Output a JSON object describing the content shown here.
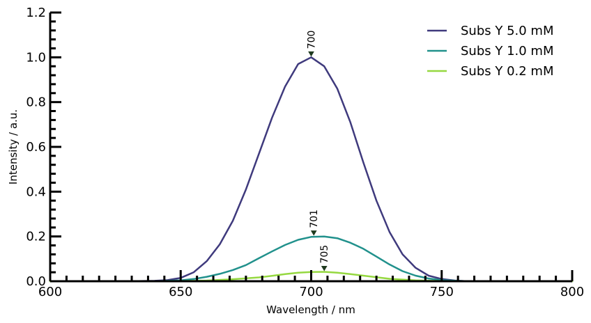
{
  "chart_data": {
    "type": "line",
    "title": "",
    "xlabel": "Wavelength / nm",
    "ylabel": "Intensity / a.u.",
    "xlim": [
      600,
      800
    ],
    "ylim": [
      0,
      1.2
    ],
    "x_ticks": [
      "600",
      "650",
      "700",
      "750",
      "800"
    ],
    "y_ticks": [
      "0.0",
      "0.2",
      "0.4",
      "0.6",
      "0.8",
      "1.0",
      "1.2"
    ],
    "legend_position": "top-right",
    "grid": false,
    "series": [
      {
        "name": "Subs Y 5.0 mM",
        "color": "#3f3a7d",
        "x": [
          600,
          610,
          620,
          630,
          640,
          645,
          650,
          655,
          660,
          665,
          670,
          675,
          680,
          685,
          690,
          695,
          700,
          705,
          710,
          715,
          720,
          725,
          730,
          735,
          740,
          745,
          750,
          755,
          760,
          770,
          780,
          790,
          800
        ],
        "y": [
          0.0,
          0.0,
          0.0,
          0.0,
          0.002,
          0.005,
          0.015,
          0.04,
          0.09,
          0.165,
          0.27,
          0.41,
          0.57,
          0.73,
          0.87,
          0.97,
          1.0,
          0.96,
          0.86,
          0.71,
          0.53,
          0.36,
          0.22,
          0.12,
          0.06,
          0.025,
          0.01,
          0.003,
          0.0,
          0.0,
          0.0,
          0.0,
          0.0
        ]
      },
      {
        "name": "Subs Y 1.0 mM",
        "color": "#21918c",
        "x": [
          600,
          620,
          640,
          650,
          655,
          660,
          665,
          670,
          675,
          680,
          685,
          690,
          695,
          700,
          705,
          710,
          715,
          720,
          725,
          730,
          735,
          740,
          745,
          750,
          760,
          780,
          800
        ],
        "y": [
          0.0,
          0.0,
          0.0,
          0.004,
          0.01,
          0.02,
          0.033,
          0.05,
          0.072,
          0.103,
          0.133,
          0.162,
          0.185,
          0.198,
          0.2,
          0.192,
          0.172,
          0.145,
          0.11,
          0.075,
          0.045,
          0.025,
          0.012,
          0.005,
          0.0,
          0.0,
          0.0
        ]
      },
      {
        "name": "Subs Y 0.2 mM",
        "color": "#95d840",
        "x": [
          600,
          620,
          640,
          650,
          660,
          670,
          680,
          685,
          690,
          695,
          700,
          705,
          710,
          715,
          720,
          725,
          730,
          740,
          750,
          760,
          780,
          800
        ],
        "y": [
          0.0,
          0.0,
          0.0,
          0.001,
          0.003,
          0.009,
          0.017,
          0.024,
          0.032,
          0.038,
          0.041,
          0.042,
          0.038,
          0.032,
          0.025,
          0.018,
          0.011,
          0.004,
          0.001,
          0.0,
          0.0,
          0.0
        ]
      }
    ],
    "annotations": [
      {
        "text": "700",
        "x": 700,
        "y": 1.0
      },
      {
        "text": "701",
        "x": 701,
        "y": 0.2
      },
      {
        "text": "705",
        "x": 705,
        "y": 0.042
      }
    ]
  }
}
